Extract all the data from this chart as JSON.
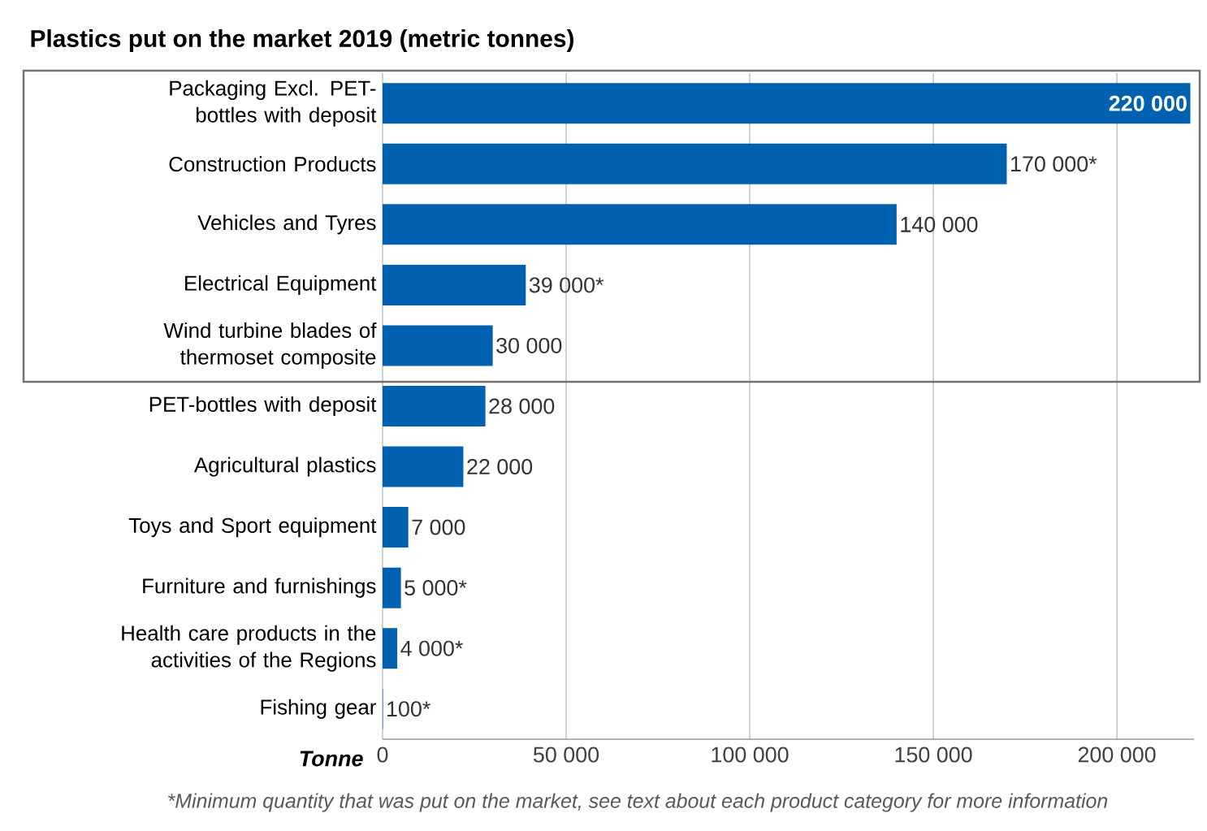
{
  "chart_data": {
    "type": "bar",
    "orientation": "horizontal",
    "title": "Plastics put on the market 2019 (metric tonnes)",
    "xlabel": "Tonne",
    "categories": [
      "Packaging Excl. PET-bottles with deposit",
      "Construction Products",
      "Vehicles and Tyres",
      "Electrical Equipment",
      "Wind turbine blades of thermoset composite",
      "PET-bottles with deposit",
      "Agricultural plastics",
      "Toys and Sport equipment",
      "Furniture and furnishings",
      "Health care products in the activities of the Regions",
      "Fishing gear"
    ],
    "values": [
      220000,
      170000,
      140000,
      39000,
      30000,
      28000,
      22000,
      7000,
      5000,
      4000,
      100
    ],
    "value_labels": [
      "220 000",
      "170 000*",
      "140 000",
      "39 000*",
      "30 000",
      "28 000",
      "22 000",
      "7 000",
      "5 000*",
      "4 000*",
      "100*"
    ],
    "color": "#0061b0",
    "xlim": [
      0,
      221000
    ],
    "xticks": [
      0,
      {
        "value": 50000,
        "label": "50 000"
      },
      {
        "value": 100000,
        "label": "100 000"
      },
      {
        "value": 150000,
        "label": "150 000"
      },
      {
        "value": 200000,
        "label": "200 000"
      }
    ],
    "grid": "x",
    "annotations": [
      "*Minimum quantity that was put on the market, see text about each product category for more information"
    ]
  }
}
